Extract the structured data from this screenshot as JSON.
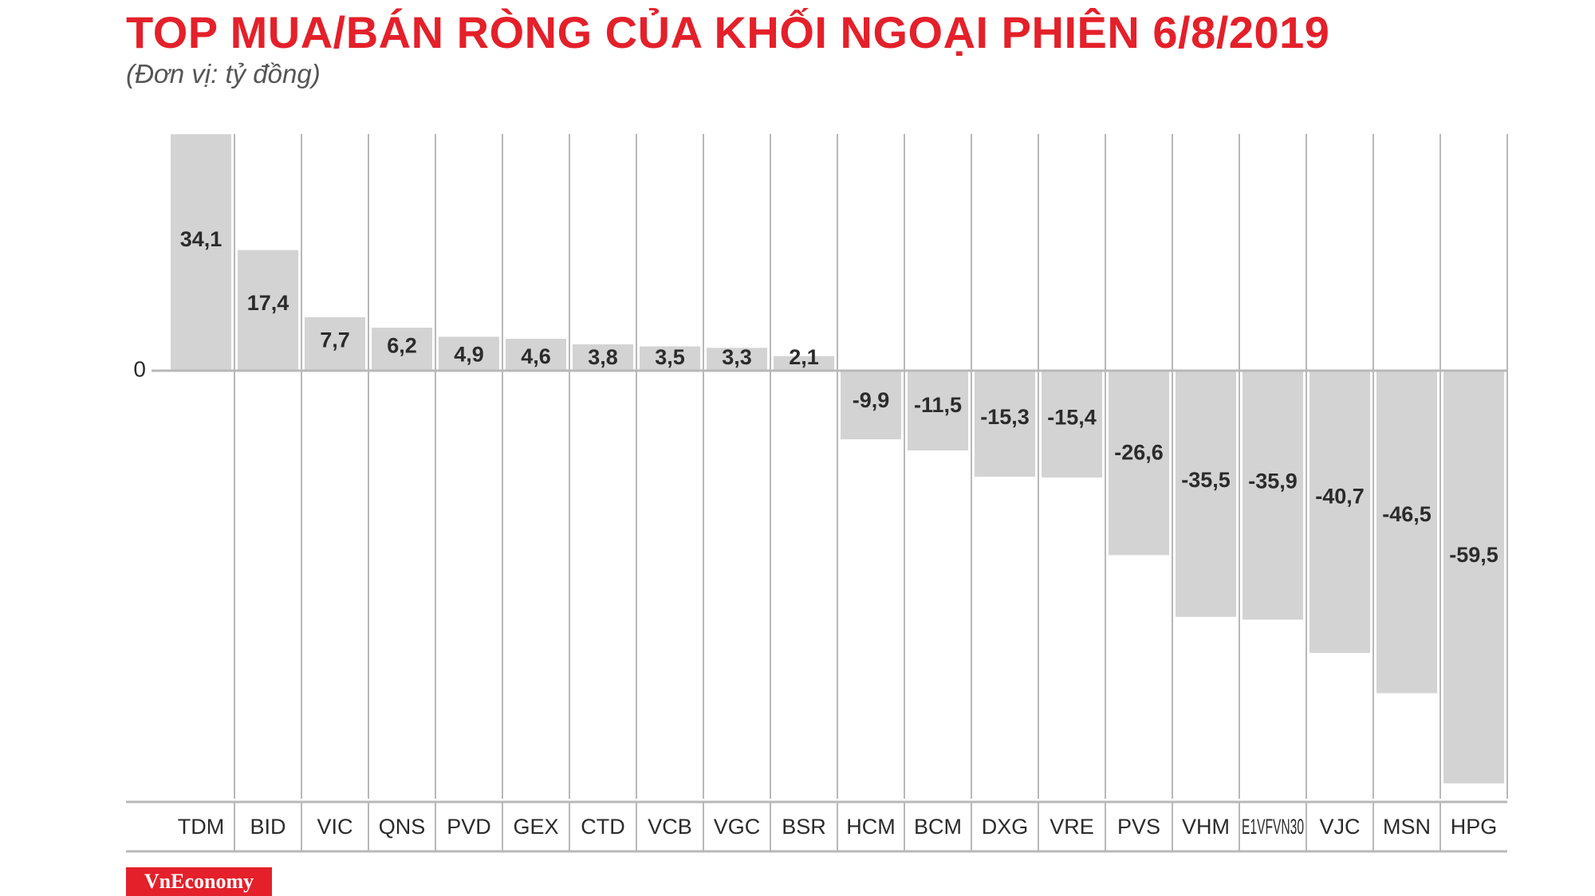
{
  "chart_data": {
    "type": "bar",
    "title": "TOP MUA/BÁN RÒNG CỦA KHỐI NGOẠI PHIÊN 6/8/2019",
    "subtitle": "(Đơn vị: tỷ đồng)",
    "xlabel": "",
    "ylabel": "",
    "ylim": [
      -59.5,
      34.1
    ],
    "zero_label": "0",
    "grid": "vertical",
    "categories": [
      "TDM",
      "BID",
      "VIC",
      "QNS",
      "PVD",
      "GEX",
      "CTD",
      "VCB",
      "VGC",
      "BSR",
      "HCM",
      "BCM",
      "DXG",
      "VRE",
      "PVS",
      "VHM",
      "E1VFVN30",
      "VJC",
      "MSN",
      "HPG"
    ],
    "values": [
      34.1,
      17.4,
      7.7,
      6.2,
      4.9,
      4.6,
      3.8,
      3.5,
      3.3,
      2.1,
      -9.9,
      -11.5,
      -15.3,
      -15.4,
      -26.6,
      -35.5,
      -35.9,
      -40.7,
      -46.5,
      -59.5
    ],
    "value_labels": [
      "34,1",
      "17,4",
      "7,7",
      "6,2",
      "4,9",
      "4,6",
      "3,8",
      "3,5",
      "3,3",
      "2,1",
      "-9,9",
      "-11,5",
      "-15,3",
      "-15,4",
      "-26,6",
      "-35,5",
      "-35,9",
      "-40,7",
      "-46,5",
      "-59,5"
    ],
    "colors": {
      "bar": "#d3d3d3",
      "grid": "#b8b8b8",
      "text": "#2b2b2b",
      "title": "#e4202a"
    }
  },
  "brand": {
    "label": "VnEconomy",
    "color": "#e4202a"
  }
}
